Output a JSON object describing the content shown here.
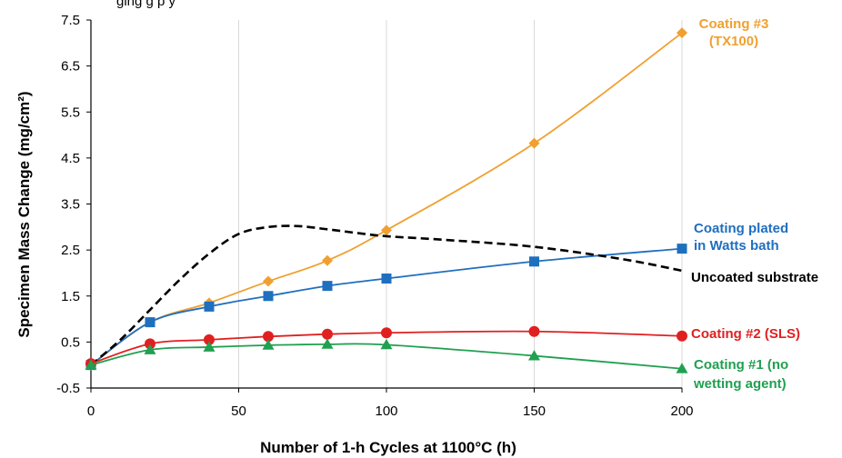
{
  "header": {
    "partial_text": "ging                    g  p  y"
  },
  "chart_data": {
    "type": "line",
    "title": "",
    "xlabel": "Number of 1-h Cycles at 1100°C (h)",
    "ylabel": "Specimen Mass Change (mg/cm²)",
    "xlim": [
      0,
      200
    ],
    "ylim": [
      -0.5,
      7.5
    ],
    "xticks": [
      0,
      50,
      100,
      150,
      200
    ],
    "yticks": [
      -0.5,
      0.5,
      1.5,
      2.5,
      3.5,
      4.5,
      5.5,
      6.5,
      7.5
    ],
    "xtick_labels": [
      "0",
      "50",
      "100",
      "150",
      "200"
    ],
    "ytick_labels": [
      "-0.5",
      "0.5",
      "1.5",
      "2.5",
      "3.5",
      "4.5",
      "5.5",
      "6.5",
      "7.5"
    ],
    "grid": "vertical",
    "legend": "inline-right",
    "series": [
      {
        "name": "Coating #3 (TX100)",
        "label_lines": [
          "Coating #3",
          "(TX100)"
        ],
        "color": "#f0a030",
        "marker": "diamond",
        "dashed": false,
        "x": [
          0,
          20,
          40,
          60,
          80,
          100,
          150,
          200
        ],
        "y": [
          0.0,
          0.93,
          1.35,
          1.82,
          2.27,
          2.93,
          4.82,
          7.22
        ]
      },
      {
        "name": "Coating plated in Watts bath",
        "label_lines": [
          "Coating plated",
          "in Watts bath"
        ],
        "color": "#1f6fbf",
        "marker": "square",
        "dashed": false,
        "x": [
          0,
          20,
          40,
          60,
          80,
          100,
          150,
          200
        ],
        "y": [
          0.0,
          0.93,
          1.27,
          1.5,
          1.72,
          1.88,
          2.25,
          2.53
        ]
      },
      {
        "name": "Uncoated substrate",
        "label_lines": [
          "Uncoated substrate"
        ],
        "color": "#000000",
        "marker": "none",
        "dashed": true,
        "x": [
          0,
          10,
          20,
          30,
          40,
          50,
          60,
          70,
          80,
          90,
          100,
          120,
          150,
          180,
          200
        ],
        "y": [
          0.0,
          0.55,
          1.2,
          1.85,
          2.42,
          2.85,
          3.0,
          3.02,
          2.95,
          2.87,
          2.8,
          2.72,
          2.57,
          2.3,
          2.05
        ]
      },
      {
        "name": "Coating #2 (SLS)",
        "label_lines": [
          "Coating #2 (SLS)"
        ],
        "color": "#e02020",
        "marker": "circle",
        "dashed": false,
        "x": [
          0,
          20,
          40,
          60,
          80,
          100,
          150,
          200
        ],
        "y": [
          0.03,
          0.46,
          0.55,
          0.62,
          0.67,
          0.7,
          0.73,
          0.63
        ]
      },
      {
        "name": "Coating #1 (no wetting agent)",
        "label_lines": [
          "Coating #1 (no",
          "wetting agent)"
        ],
        "color": "#20a050",
        "marker": "triangle",
        "dashed": false,
        "x": [
          0,
          20,
          40,
          60,
          80,
          100,
          150,
          200
        ],
        "y": [
          0.0,
          0.33,
          0.39,
          0.43,
          0.45,
          0.44,
          0.2,
          -0.08
        ]
      }
    ]
  }
}
